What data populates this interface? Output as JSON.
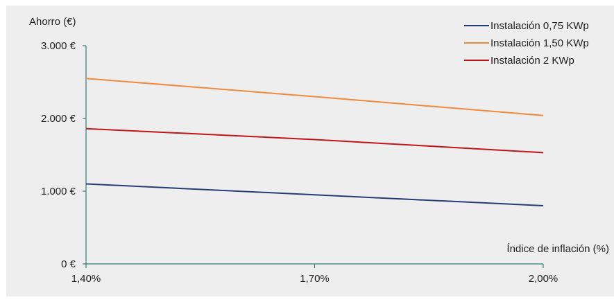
{
  "chart_data": {
    "type": "line",
    "title": "",
    "xlabel": "Índice de inflación (%)",
    "ylabel": "Ahorro (€)",
    "x": [
      "1,40%",
      "1,70%",
      "2,00%"
    ],
    "x_values": [
      1.4,
      1.7,
      2.0
    ],
    "xlim": [
      1.4,
      2.0
    ],
    "ylim": [
      0,
      3000
    ],
    "y_ticks": [
      0,
      1000,
      2000,
      3000
    ],
    "y_tick_labels": [
      "0 €",
      "1.000 €",
      "2.000 €",
      "3.000 €"
    ],
    "grid": false,
    "legend_position": "top-right",
    "series": [
      {
        "name": "Instalación 0,75 KWp",
        "color": "#243b73",
        "values": [
          1100,
          950,
          800
        ]
      },
      {
        "name": "Instalación 1,50 KWp",
        "color": "#ef8a3c",
        "values": [
          2550,
          2300,
          2040
        ]
      },
      {
        "name": "Instalación 2 KWp",
        "color": "#c0161b",
        "values": [
          1860,
          1710,
          1530
        ]
      }
    ],
    "axis_color": "#2e7d74",
    "background": "#eeeeee"
  }
}
